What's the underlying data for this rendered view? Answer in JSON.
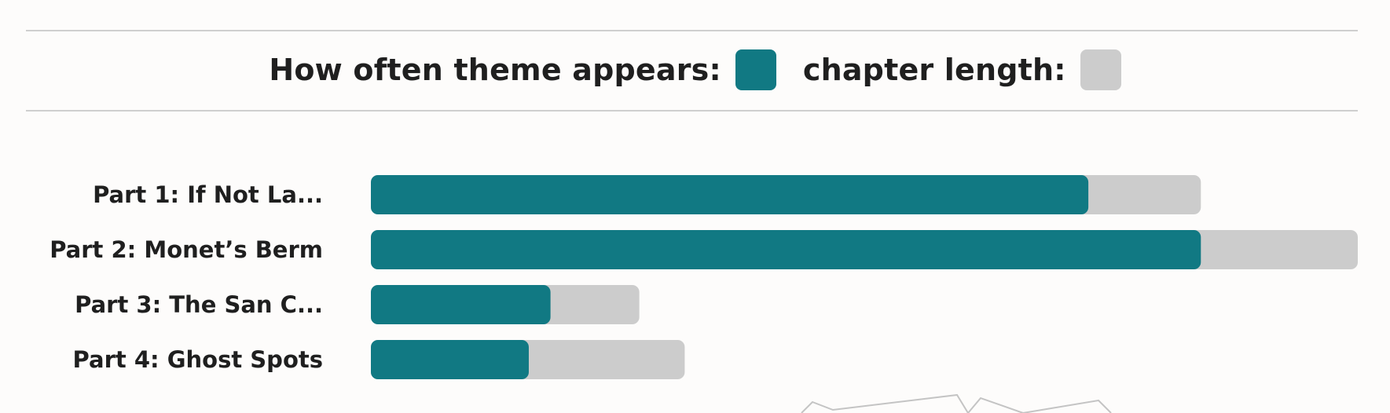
{
  "legend": {
    "primary_label": "How often theme appears:",
    "secondary_label": "chapter length:"
  },
  "colors": {
    "theme": "#117983",
    "length": "#cccccc",
    "rule": "#cfcfcf",
    "text": "#1f1f1f",
    "background": "#fdfcfb"
  },
  "chart_data": {
    "type": "bar",
    "orientation": "horizontal",
    "categories": [
      "Part 1: If Not La...",
      "Part 2: Monet’s Berm",
      "Part 3: The San C...",
      "Part 4: Ghost Spots"
    ],
    "series": [
      {
        "name": "How often theme appears",
        "values": [
          72.7,
          84.1,
          18.2,
          16.0
        ]
      },
      {
        "name": "chapter length",
        "values": [
          84.1,
          100,
          27.2,
          31.8
        ]
      }
    ],
    "xlim": [
      0,
      100
    ],
    "grid": false,
    "legend_position": "top-center"
  }
}
